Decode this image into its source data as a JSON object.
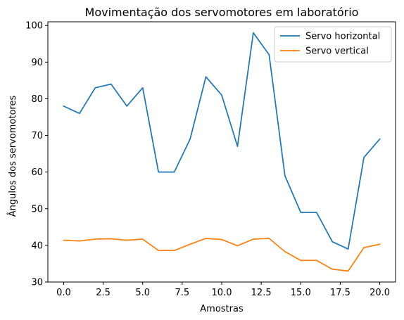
{
  "chart_data": {
    "type": "line",
    "title": "Movimentação dos servomotores em laboratório",
    "xlabel": "Amostras",
    "ylabel": "Ângulos dos servomotores",
    "xlim": [
      -1,
      21
    ],
    "ylim": [
      30,
      101
    ],
    "xticks": [
      0,
      2.5,
      5,
      7.5,
      10,
      12.5,
      15,
      17.5,
      20
    ],
    "xtick_labels": [
      "0.0",
      "2.5",
      "5.0",
      "7.5",
      "10.0",
      "12.5",
      "15.0",
      "17.5",
      "20.0"
    ],
    "yticks": [
      30,
      40,
      50,
      60,
      70,
      80,
      90,
      100
    ],
    "ytick_labels": [
      "30",
      "40",
      "50",
      "60",
      "70",
      "80",
      "90",
      "100"
    ],
    "grid": false,
    "legend": "top-right",
    "x": [
      0,
      1,
      2,
      3,
      4,
      5,
      6,
      7,
      8,
      9,
      10,
      11,
      12,
      13,
      14,
      15,
      16,
      17,
      18,
      19,
      20
    ],
    "series": [
      {
        "name": "Servo horizontal",
        "color": "#1f77b4",
        "values": [
          78,
          76,
          83,
          84,
          78,
          83,
          60,
          60,
          69,
          86,
          81,
          67,
          98,
          92,
          59,
          49,
          49,
          41,
          39,
          64,
          69
        ]
      },
      {
        "name": "Servo vertical",
        "color": "#ff7f0e",
        "values": [
          41.4,
          41.2,
          41.7,
          41.8,
          41.4,
          41.7,
          38.6,
          38.6,
          40.3,
          41.9,
          41.6,
          39.9,
          41.7,
          41.9,
          38.3,
          35.9,
          35.9,
          33.5,
          33.0,
          39.4,
          40.3
        ]
      }
    ]
  }
}
